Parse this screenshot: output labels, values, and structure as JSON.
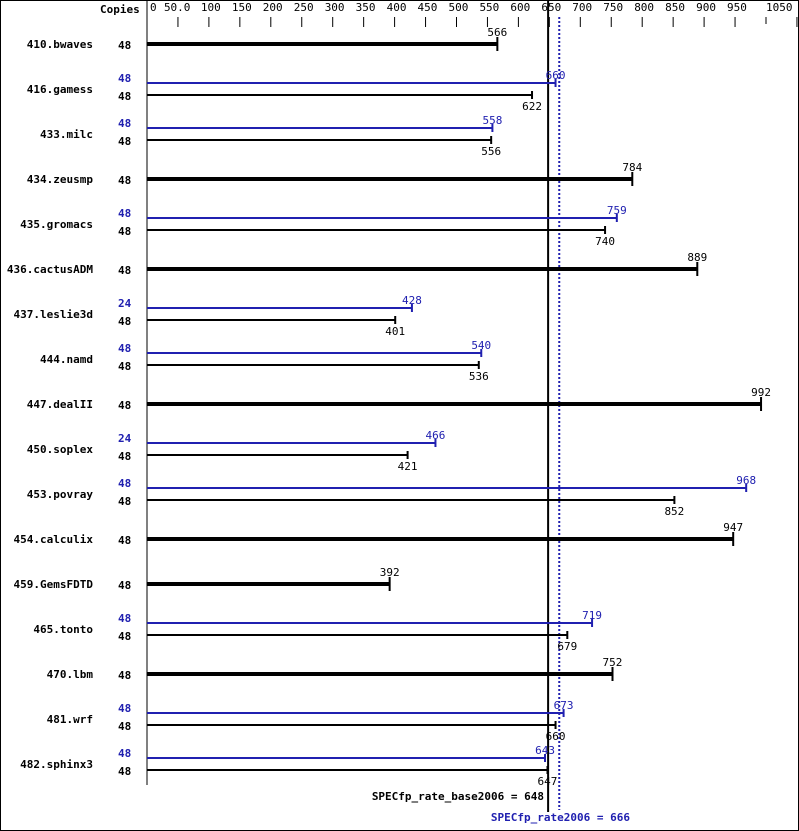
{
  "chart_data": {
    "type": "bar",
    "orientation": "horizontal",
    "copies_header": "Copies",
    "xlim": [
      0,
      1050
    ],
    "tick_labels": [
      "0",
      "50.0",
      "100",
      "150",
      "200",
      "250",
      "300",
      "350",
      "400",
      "450",
      "500",
      "550",
      "600",
      "650",
      "700",
      "750",
      "800",
      "850",
      "900",
      "950",
      "1050"
    ],
    "tick_values": [
      0,
      50,
      100,
      150,
      200,
      250,
      300,
      350,
      400,
      450,
      500,
      550,
      600,
      650,
      700,
      750,
      800,
      850,
      900,
      950,
      1000,
      1050
    ],
    "colors": {
      "base": "#000000",
      "peak": "#2020b0"
    },
    "benchmarks": [
      {
        "name": "410.bwaves",
        "base_copies": "48",
        "base": 566,
        "peak_copies": null,
        "peak": null
      },
      {
        "name": "416.gamess",
        "base_copies": "48",
        "base": 622,
        "peak_copies": "48",
        "peak": 660
      },
      {
        "name": "433.milc",
        "base_copies": "48",
        "base": 556,
        "peak_copies": "48",
        "peak": 558
      },
      {
        "name": "434.zeusmp",
        "base_copies": "48",
        "base": 784,
        "peak_copies": null,
        "peak": null
      },
      {
        "name": "435.gromacs",
        "base_copies": "48",
        "base": 740,
        "peak_copies": "48",
        "peak": 759
      },
      {
        "name": "436.cactusADM",
        "base_copies": "48",
        "base": 889,
        "peak_copies": null,
        "peak": null
      },
      {
        "name": "437.leslie3d",
        "base_copies": "48",
        "base": 401,
        "peak_copies": "24",
        "peak": 428
      },
      {
        "name": "444.namd",
        "base_copies": "48",
        "base": 536,
        "peak_copies": "48",
        "peak": 540
      },
      {
        "name": "447.dealII",
        "base_copies": "48",
        "base": 992,
        "peak_copies": null,
        "peak": null
      },
      {
        "name": "450.soplex",
        "base_copies": "48",
        "base": 421,
        "peak_copies": "24",
        "peak": 466
      },
      {
        "name": "453.povray",
        "base_copies": "48",
        "base": 852,
        "peak_copies": "48",
        "peak": 968
      },
      {
        "name": "454.calculix",
        "base_copies": "48",
        "base": 947,
        "peak_copies": null,
        "peak": null
      },
      {
        "name": "459.GemsFDTD",
        "base_copies": "48",
        "base": 392,
        "peak_copies": null,
        "peak": null
      },
      {
        "name": "465.tonto",
        "base_copies": "48",
        "base": 679,
        "peak_copies": "48",
        "peak": 719
      },
      {
        "name": "470.lbm",
        "base_copies": "48",
        "base": 752,
        "peak_copies": null,
        "peak": null
      },
      {
        "name": "481.wrf",
        "base_copies": "48",
        "base": 660,
        "peak_copies": "48",
        "peak": 673
      },
      {
        "name": "482.sphinx3",
        "base_copies": "48",
        "base": 647,
        "peak_copies": "48",
        "peak": 643
      }
    ],
    "base_summary": {
      "label": "SPECfp_rate_base2006 = 648",
      "value": 648
    },
    "peak_summary": {
      "label": "SPECfp_rate2006 = 666",
      "value": 666
    }
  }
}
